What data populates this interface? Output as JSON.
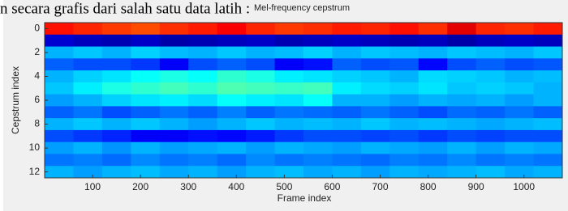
{
  "text_line": "n secara grafis dari salah satu data latih :",
  "chart_data": {
    "type": "heatmap",
    "title": "Mel-frequency cepstrum",
    "xlabel": "Frame index",
    "ylabel": "Cepstrum index",
    "xlim": [
      0,
      1080
    ],
    "xticks": [
      100,
      200,
      300,
      400,
      500,
      600,
      700,
      800,
      900,
      1000
    ],
    "ylim": [
      -0.5,
      12.5
    ],
    "y_reversed": true,
    "yticks": [
      0,
      2,
      4,
      6,
      8,
      10,
      12
    ],
    "colormap": "jet",
    "clim": [
      0,
      1
    ],
    "x_edges": [
      0,
      60,
      120,
      180,
      240,
      300,
      360,
      420,
      480,
      540,
      600,
      660,
      720,
      780,
      840,
      900,
      960,
      1020,
      1080
    ],
    "y": [
      0,
      1,
      2,
      3,
      4,
      5,
      6,
      7,
      8,
      9,
      10,
      11,
      12
    ],
    "z": [
      [
        0.86,
        0.84,
        0.82,
        0.8,
        0.83,
        0.85,
        0.88,
        0.84,
        0.82,
        0.83,
        0.85,
        0.84,
        0.86,
        0.83,
        0.9,
        0.84,
        0.83,
        0.85
      ],
      [
        0.08,
        0.06,
        0.05,
        0.07,
        0.04,
        0.05,
        0.06,
        0.07,
        0.05,
        0.06,
        0.07,
        0.06,
        0.05,
        0.06,
        0.04,
        0.06,
        0.07,
        0.06
      ],
      [
        0.3,
        0.32,
        0.3,
        0.33,
        0.31,
        0.3,
        0.32,
        0.3,
        0.31,
        0.33,
        0.3,
        0.32,
        0.31,
        0.3,
        0.32,
        0.31,
        0.3,
        0.32
      ],
      [
        0.22,
        0.2,
        0.2,
        0.18,
        0.12,
        0.2,
        0.22,
        0.2,
        0.12,
        0.14,
        0.22,
        0.2,
        0.21,
        0.13,
        0.2,
        0.22,
        0.2,
        0.21
      ],
      [
        0.3,
        0.33,
        0.35,
        0.38,
        0.4,
        0.38,
        0.42,
        0.4,
        0.36,
        0.35,
        0.33,
        0.32,
        0.3,
        0.34,
        0.33,
        0.32,
        0.3,
        0.31
      ],
      [
        0.32,
        0.36,
        0.4,
        0.42,
        0.44,
        0.42,
        0.45,
        0.44,
        0.43,
        0.44,
        0.36,
        0.34,
        0.33,
        0.35,
        0.32,
        0.33,
        0.32,
        0.3
      ],
      [
        0.28,
        0.3,
        0.33,
        0.35,
        0.36,
        0.34,
        0.38,
        0.36,
        0.35,
        0.38,
        0.3,
        0.3,
        0.28,
        0.3,
        0.29,
        0.3,
        0.28,
        0.3
      ],
      [
        0.22,
        0.24,
        0.2,
        0.22,
        0.24,
        0.22,
        0.25,
        0.22,
        0.24,
        0.23,
        0.22,
        0.24,
        0.22,
        0.2,
        0.23,
        0.22,
        0.24,
        0.22
      ],
      [
        0.3,
        0.32,
        0.3,
        0.32,
        0.3,
        0.28,
        0.3,
        0.32,
        0.3,
        0.31,
        0.3,
        0.32,
        0.3,
        0.31,
        0.3,
        0.29,
        0.3,
        0.31
      ],
      [
        0.2,
        0.18,
        0.16,
        0.12,
        0.12,
        0.14,
        0.13,
        0.15,
        0.18,
        0.2,
        0.2,
        0.19,
        0.2,
        0.18,
        0.2,
        0.19,
        0.2,
        0.2
      ],
      [
        0.28,
        0.3,
        0.27,
        0.3,
        0.28,
        0.29,
        0.3,
        0.28,
        0.3,
        0.29,
        0.28,
        0.3,
        0.29,
        0.28,
        0.3,
        0.28,
        0.3,
        0.29
      ],
      [
        0.24,
        0.25,
        0.23,
        0.26,
        0.24,
        0.25,
        0.23,
        0.26,
        0.24,
        0.25,
        0.24,
        0.23,
        0.25,
        0.24,
        0.26,
        0.24,
        0.25,
        0.24
      ],
      [
        0.3,
        0.28,
        0.3,
        0.31,
        0.29,
        0.3,
        0.28,
        0.3,
        0.31,
        0.29,
        0.3,
        0.28,
        0.3,
        0.29,
        0.3,
        0.31,
        0.29,
        0.3
      ]
    ]
  }
}
